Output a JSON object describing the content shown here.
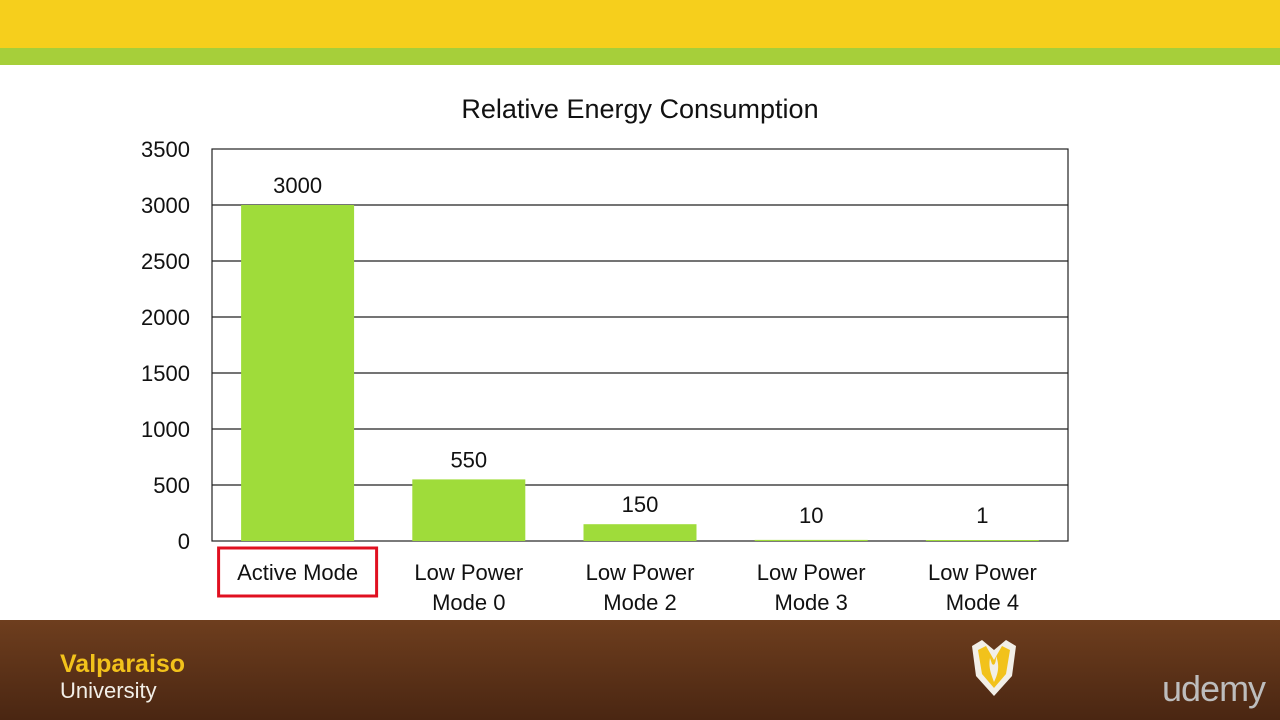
{
  "theme": {
    "top_band": "#f6cf1c",
    "accent_band": "#a6cf3a",
    "footer_top": "#6e3e1e",
    "footer_bottom": "#4a2612",
    "bar_color": "#9fdc3a",
    "highlight_color": "#e01020",
    "logo_gold": "#f2c21b",
    "text_light": "#f2efe8",
    "udemy_color": "#bdbdbd"
  },
  "chart_data": {
    "type": "bar",
    "title": "Relative Energy Consumption",
    "categories": [
      [
        "Active Mode"
      ],
      [
        "Low Power",
        "Mode 0"
      ],
      [
        "Low Power",
        "Mode 2"
      ],
      [
        "Low Power",
        "Mode 3"
      ],
      [
        "Low Power",
        "Mode 4"
      ]
    ],
    "values": [
      3000,
      550,
      150,
      10,
      1
    ],
    "data_labels": [
      "3000",
      "550",
      "150",
      "10",
      "1"
    ],
    "ylim": [
      0,
      3500
    ],
    "yticks": [
      0,
      500,
      1000,
      1500,
      2000,
      2500,
      3000,
      3500
    ],
    "grid": true,
    "highlighted_category": "Active Mode"
  },
  "branding": {
    "university_name": "Valparaiso",
    "university_suffix": "University",
    "platform": "udemy"
  }
}
